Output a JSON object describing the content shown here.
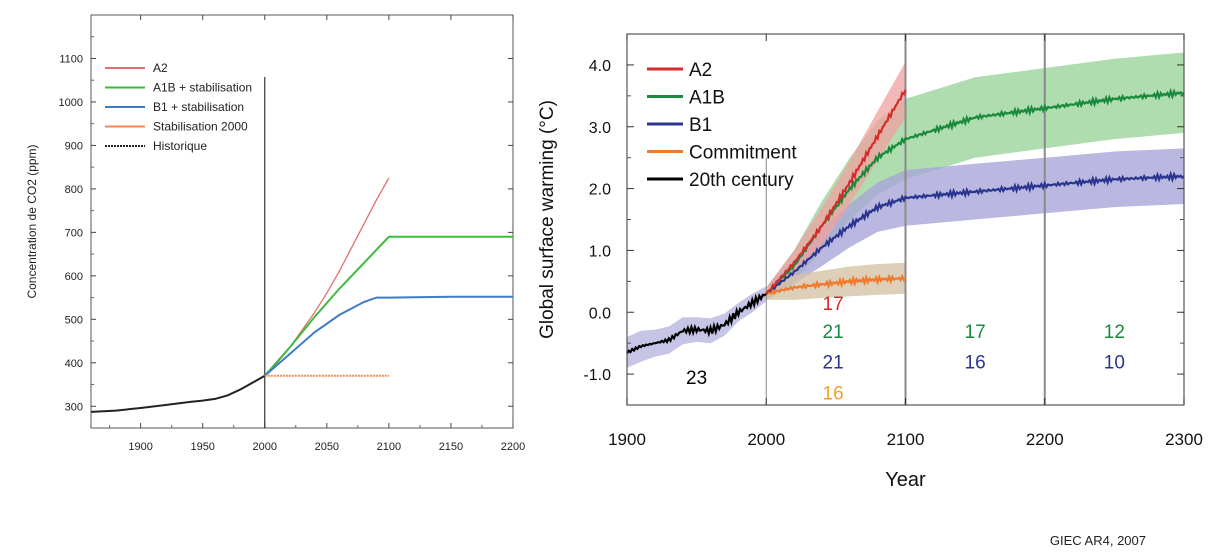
{
  "colors": {
    "a2": "#d62b2b",
    "a1b": "#1a8a3c",
    "b1": "#2a3590",
    "commit": "#f07a2a",
    "hist": "#000000",
    "left_a2": "#e07070",
    "left_a1b": "#3dbb3d",
    "left_b1": "#3f7bc6",
    "left_stab": "#f08a50",
    "left_hist": "#222222",
    "num_orange": "#f0a030"
  },
  "chart_data": [
    {
      "type": "line",
      "ylabel": "Concentration de CO2 (ppm)",
      "xlabel": "",
      "xlim": [
        1860,
        2200
      ],
      "ylim": [
        250,
        1200
      ],
      "xticks": [
        1900,
        1950,
        2000,
        2050,
        2100,
        2150,
        2200
      ],
      "yticks": [
        300,
        400,
        500,
        600,
        700,
        800,
        900,
        1000,
        1100
      ],
      "legend_position": "top-left",
      "legend": [
        "A2",
        "A1B + stabilisation",
        "B1 + stabilisation",
        "Stabilisation 2000",
        "Historique"
      ],
      "series": [
        {
          "name": "Historique",
          "color_key": "left_hist",
          "x": [
            1860,
            1880,
            1900,
            1920,
            1940,
            1950,
            1960,
            1970,
            1980,
            1990,
            2000
          ],
          "y": [
            287,
            290,
            296,
            303,
            310,
            313,
            317,
            325,
            338,
            354,
            370
          ]
        },
        {
          "name": "A2",
          "color_key": "left_a2",
          "x": [
            2000,
            2010,
            2020,
            2030,
            2040,
            2050,
            2060,
            2070,
            2080,
            2090,
            2100
          ],
          "y": [
            370,
            400,
            435,
            475,
            515,
            560,
            610,
            665,
            720,
            775,
            825
          ]
        },
        {
          "name": "A1B + stabilisation",
          "color_key": "left_a1b",
          "x": [
            2000,
            2020,
            2040,
            2060,
            2080,
            2100,
            2150,
            2200
          ],
          "y": [
            370,
            435,
            505,
            570,
            630,
            690,
            690,
            690
          ]
        },
        {
          "name": "B1 + stabilisation",
          "color_key": "left_b1",
          "x": [
            2000,
            2020,
            2040,
            2060,
            2080,
            2090,
            2100,
            2150,
            2200
          ],
          "y": [
            370,
            420,
            470,
            510,
            540,
            550,
            550,
            552,
            552
          ]
        },
        {
          "name": "Stabilisation 2000",
          "color_key": "left_stab",
          "x": [
            2000,
            2050,
            2100
          ],
          "y": [
            370,
            370,
            370
          ]
        }
      ],
      "vline_x": 2000
    },
    {
      "type": "line",
      "ylabel": "Global surface warming (°C)",
      "xlabel": "Year",
      "xlim": [
        1900,
        2300
      ],
      "ylim": [
        -1.5,
        4.5
      ],
      "xticks": [
        1900,
        2000,
        2100,
        2200,
        2300
      ],
      "yticks": [
        -1.0,
        0.0,
        1.0,
        2.0,
        3.0,
        4.0
      ],
      "ytick_labels": [
        "-1.0",
        "0.0",
        "1.0",
        "2.0",
        "3.0",
        "4.0"
      ],
      "legend_position": "top-left",
      "legend": [
        "A2",
        "A1B",
        "B1",
        "Commitment",
        "20th century"
      ],
      "vlines": [
        2000,
        2100,
        2200
      ],
      "series": [
        {
          "name": "20th century",
          "color_key": "hist",
          "x": [
            1900,
            1910,
            1920,
            1930,
            1940,
            1950,
            1960,
            1970,
            1980,
            1990,
            2000
          ],
          "y": [
            -0.65,
            -0.55,
            -0.5,
            -0.45,
            -0.3,
            -0.28,
            -0.3,
            -0.2,
            0.0,
            0.15,
            0.3
          ],
          "band": [
            0.25,
            0.25,
            0.22,
            0.22,
            0.22,
            0.2,
            0.2,
            0.18,
            0.15,
            0.15,
            0.12
          ]
        },
        {
          "name": "A2",
          "color_key": "a2",
          "x": [
            2000,
            2020,
            2040,
            2060,
            2080,
            2100
          ],
          "y": [
            0.3,
            0.8,
            1.4,
            2.1,
            2.85,
            3.6
          ],
          "band": [
            0.1,
            0.2,
            0.3,
            0.35,
            0.4,
            0.45
          ]
        },
        {
          "name": "A1B",
          "color_key": "a1b",
          "x": [
            2000,
            2020,
            2040,
            2060,
            2080,
            2100,
            2150,
            2200,
            2250,
            2300
          ],
          "y": [
            0.3,
            0.75,
            1.4,
            2.0,
            2.5,
            2.8,
            3.15,
            3.3,
            3.45,
            3.55
          ],
          "band": [
            0.1,
            0.25,
            0.4,
            0.5,
            0.6,
            0.65,
            0.65,
            0.65,
            0.65,
            0.65
          ]
        },
        {
          "name": "B1",
          "color_key": "b1",
          "x": [
            2000,
            2020,
            2040,
            2060,
            2080,
            2100,
            2150,
            2200,
            2250,
            2300
          ],
          "y": [
            0.3,
            0.65,
            1.05,
            1.4,
            1.7,
            1.85,
            1.95,
            2.05,
            2.15,
            2.2
          ],
          "band": [
            0.1,
            0.2,
            0.3,
            0.35,
            0.4,
            0.45,
            0.45,
            0.45,
            0.45,
            0.45
          ]
        },
        {
          "name": "Commitment",
          "color_key": "commit",
          "x": [
            2000,
            2020,
            2040,
            2060,
            2080,
            2100
          ],
          "y": [
            0.3,
            0.4,
            0.45,
            0.5,
            0.53,
            0.55
          ],
          "band": [
            0.1,
            0.2,
            0.22,
            0.24,
            0.25,
            0.25
          ]
        }
      ],
      "annotations": [
        {
          "text": "23",
          "x": 1950,
          "y": -1.05,
          "color_key": "hist"
        },
        {
          "text": "17",
          "x": 2048,
          "y": 0.15,
          "color_key": "a2"
        },
        {
          "text": "21",
          "x": 2048,
          "y": -0.3,
          "color_key": "a1b"
        },
        {
          "text": "21",
          "x": 2048,
          "y": -0.8,
          "color_key": "b1"
        },
        {
          "text": "16",
          "x": 2048,
          "y": -1.3,
          "color_key": "num_orange"
        },
        {
          "text": "17",
          "x": 2150,
          "y": -0.3,
          "color_key": "a1b"
        },
        {
          "text": "16",
          "x": 2150,
          "y": -0.8,
          "color_key": "b1"
        },
        {
          "text": "12",
          "x": 2250,
          "y": -0.3,
          "color_key": "a1b"
        },
        {
          "text": "10",
          "x": 2250,
          "y": -0.8,
          "color_key": "b1"
        }
      ]
    }
  ],
  "caption": "GIEC AR4, 2007"
}
